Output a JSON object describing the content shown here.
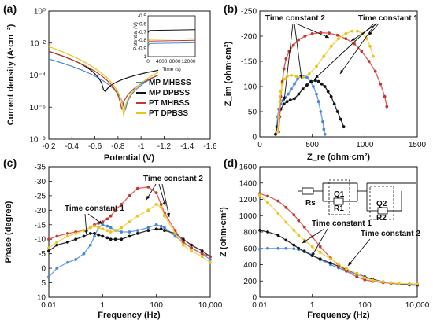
{
  "colors": {
    "mp_mhbss": "#4a86d8",
    "mp_dpbss": "#111111",
    "pt_mhbss": "#c0392b",
    "pt_dpbss": "#e6c619",
    "fit_mp_mhbss": "#6aa0e8",
    "fit_mp_dpbss": "#333333",
    "fit_pt_mhbss": "#e0605a",
    "fit_pt_dpbss": "#f0d65a",
    "axis": "#111111"
  },
  "chart_data": [
    {
      "panel": "(a)",
      "type": "line",
      "xlabel": "Potential (V)",
      "ylabel": "Current density (A·cm⁻²)",
      "xlim": [
        -0.2,
        -1.6
      ],
      "ylim_log": [
        1e-08,
        1
      ],
      "xticks": [
        "-0.2",
        "-0.4",
        "-0.6",
        "-0.8",
        "-1",
        "-1.2",
        "-1.4",
        "-1.6"
      ],
      "yticks": [
        "10⁰",
        "10⁻²",
        "10⁻⁴",
        "10⁻⁶",
        "10⁻⁸"
      ],
      "legend": [
        "MP MHBSS",
        "MP DPBSS",
        "PT MHBSS",
        "PT DPBSS"
      ],
      "series": [
        {
          "name": "MP MHBSS",
          "color": "mp_mhbss",
          "ecorr": -0.86,
          "jmin": 1.5e-07,
          "j_anodic_end": 0.001,
          "j_cathodic_end": 0.0001
        },
        {
          "name": "MP DPBSS",
          "color": "mp_dpbss",
          "ecorr": -0.68,
          "jmin": 3e-06,
          "j_anodic_end": 0.003,
          "j_cathodic_end": 0.0002
        },
        {
          "name": "PT MHBSS",
          "color": "pt_mhbss",
          "ecorr": -0.83,
          "jmin": 2e-07,
          "j_anodic_end": 0.003,
          "j_cathodic_end": 0.0001
        },
        {
          "name": "PT DPBSS",
          "color": "pt_dpbss",
          "ecorr": -0.85,
          "jmin": 1e-07,
          "j_anodic_end": 0.006,
          "j_cathodic_end": 0.00015
        }
      ],
      "inset": {
        "xlabel": "Time (s)",
        "ylabel": "Potential (V)",
        "xticks": [
          "0",
          "4000",
          "8000",
          "12000"
        ],
        "yticks": [
          "-0.5",
          "-0.6",
          "-0.7",
          "-0.8",
          "-0.9",
          "-1"
        ],
        "xlim": [
          0,
          14000
        ],
        "ylim": [
          -1,
          -0.5
        ],
        "series": [
          {
            "name": "MP MHBSS",
            "color": "mp_mhbss",
            "level": -0.84
          },
          {
            "name": "MP DPBSS",
            "color": "mp_dpbss",
            "level": -0.68
          },
          {
            "name": "PT MHBSS",
            "color": "pt_mhbss",
            "level": -0.81
          },
          {
            "name": "PT DPBSS",
            "color": "pt_dpbss",
            "level": -0.79
          }
        ]
      }
    },
    {
      "panel": "(b)",
      "type": "scatter",
      "xlabel": "Z_re (ohm·cm²)",
      "ylabel": "Z_im (ohm·cm²)",
      "xlim": [
        0,
        1500
      ],
      "ylim": [
        0,
        -250
      ],
      "xticks": [
        "0",
        "500",
        "1000",
        "1500"
      ],
      "yticks": [
        "0",
        "-50",
        "-100",
        "-150",
        "-200",
        "-250"
      ],
      "annotations": [
        "Time constant 2",
        "Time constant 1"
      ],
      "series": [
        {
          "name": "MP MHBSS",
          "color": "mp_mhbss",
          "x": [
            150,
            160,
            170,
            180,
            200,
            220,
            240,
            270,
            300,
            330,
            360,
            390,
            420,
            450,
            480,
            510,
            540,
            560,
            580,
            600,
            610,
            620
          ],
          "y": [
            -5,
            -20,
            -40,
            -55,
            -65,
            -72,
            -78,
            -85,
            -95,
            -105,
            -115,
            -120,
            -120,
            -118,
            -110,
            -100,
            -85,
            -70,
            -50,
            -30,
            -15,
            -5
          ]
        },
        {
          "name": "MP DPBSS",
          "color": "mp_dpbss",
          "x": [
            150,
            165,
            180,
            200,
            230,
            260,
            290,
            330,
            370,
            410,
            450,
            490,
            530,
            560,
            590,
            620,
            650,
            680,
            710,
            740,
            770,
            800
          ],
          "y": [
            -5,
            -20,
            -40,
            -55,
            -65,
            -70,
            -73,
            -76,
            -85,
            -95,
            -103,
            -110,
            -112,
            -110,
            -105,
            -100,
            -90,
            -80,
            -65,
            -50,
            -35,
            -20
          ]
        },
        {
          "name": "PT MHBSS",
          "color": "pt_mhbss",
          "x": [
            180,
            190,
            200,
            215,
            230,
            250,
            280,
            320,
            370,
            430,
            500,
            580,
            660,
            740,
            820,
            900,
            970,
            1040,
            1100,
            1150,
            1190,
            1210
          ],
          "y": [
            -10,
            -40,
            -80,
            -110,
            -135,
            -155,
            -170,
            -182,
            -193,
            -200,
            -205,
            -207,
            -206,
            -202,
            -195,
            -185,
            -170,
            -150,
            -130,
            -105,
            -80,
            -60
          ]
        },
        {
          "name": "PT DPBSS",
          "color": "pt_dpbss",
          "x": [
            170,
            180,
            190,
            200,
            215,
            235,
            260,
            300,
            350,
            410,
            470,
            540,
            610,
            680,
            750,
            820,
            880,
            930,
            980,
            1020,
            1050,
            1080
          ],
          "y": [
            -10,
            -40,
            -70,
            -90,
            -105,
            -115,
            -120,
            -122,
            -120,
            -118,
            -125,
            -140,
            -160,
            -180,
            -195,
            -205,
            -210,
            -210,
            -205,
            -195,
            -180,
            -160
          ]
        }
      ]
    },
    {
      "panel": "(c)",
      "type": "scatter",
      "xlabel": "Frequency (Hz)",
      "ylabel": "Phase (degree)",
      "xscale": "log",
      "xlim": [
        0.01,
        10000
      ],
      "ylim": [
        10,
        -35
      ],
      "xticks": [
        "0.01",
        "1",
        "100",
        "10,000"
      ],
      "yticks": [
        "-35",
        "-30",
        "-25",
        "-20",
        "-15",
        "-10",
        "-5",
        "0",
        "5",
        "10"
      ],
      "annotations": [
        "Time constant 1",
        "Time constant 2"
      ],
      "series": [
        {
          "name": "MP MHBSS",
          "color": "mp_mhbss",
          "x": [
            0.01,
            0.02,
            0.05,
            0.1,
            0.2,
            0.35,
            0.5,
            0.7,
            1,
            1.5,
            2,
            3,
            5,
            10,
            20,
            50,
            100,
            150,
            200,
            500,
            1000,
            2000,
            5000,
            10000
          ],
          "y": [
            3,
            0,
            -2,
            -3,
            -5,
            -8,
            -11,
            -14,
            -15,
            -14.5,
            -14,
            -13,
            -12.5,
            -12.5,
            -13,
            -14,
            -15,
            -14.5,
            -14,
            -11,
            -9,
            -7,
            -5,
            -3
          ]
        },
        {
          "name": "MP DPBSS",
          "color": "mp_dpbss",
          "x": [
            0.01,
            0.02,
            0.05,
            0.1,
            0.2,
            0.35,
            0.5,
            0.7,
            1,
            1.5,
            2,
            3,
            5,
            10,
            20,
            50,
            100,
            150,
            200,
            500,
            1000,
            2000,
            5000,
            10000
          ],
          "y": [
            -6,
            -8,
            -9,
            -10,
            -11,
            -12,
            -12,
            -11.5,
            -11,
            -10.5,
            -10,
            -10,
            -10,
            -11,
            -12,
            -13,
            -13.5,
            -13.5,
            -13,
            -12,
            -10,
            -8,
            -6,
            -4
          ]
        },
        {
          "name": "PT MHBSS",
          "color": "pt_mhbss",
          "x": [
            0.01,
            0.02,
            0.05,
            0.1,
            0.2,
            0.35,
            0.5,
            0.7,
            1,
            1.5,
            2,
            3,
            5,
            10,
            20,
            50,
            100,
            150,
            200,
            500,
            1000,
            2000,
            5000,
            10000
          ],
          "y": [
            -10,
            -11,
            -12,
            -12.5,
            -13,
            -14,
            -15,
            -15.5,
            -16,
            -17,
            -18,
            -20,
            -22,
            -25,
            -27.5,
            -28,
            -26,
            -22,
            -19,
            -13,
            -9,
            -7,
            -5,
            -4
          ]
        },
        {
          "name": "PT DPBSS",
          "color": "pt_dpbss",
          "x": [
            0.01,
            0.02,
            0.05,
            0.1,
            0.2,
            0.35,
            0.5,
            0.7,
            1,
            1.5,
            2,
            3,
            5,
            10,
            20,
            50,
            100,
            150,
            200,
            500,
            1000,
            2000,
            5000,
            10000
          ],
          "y": [
            -7,
            -9,
            -11,
            -12,
            -13,
            -14,
            -14.5,
            -14,
            -13.5,
            -13,
            -12.5,
            -13,
            -14,
            -16,
            -18,
            -20,
            -22,
            -21,
            -18,
            -12,
            -8,
            -6,
            -4,
            -2
          ]
        }
      ]
    },
    {
      "panel": "(d)",
      "type": "scatter",
      "xlabel": "Frequency (Hz)",
      "ylabel": "Z (ohm·cm²)",
      "xscale": "log",
      "xlim": [
        0.01,
        10000
      ],
      "ylim": [
        0,
        1600
      ],
      "xticks": [
        "0.01",
        "1",
        "100",
        "10,000"
      ],
      "yticks": [
        "0",
        "200",
        "400",
        "600",
        "800",
        "1000",
        "1200",
        "1400",
        "1600"
      ],
      "annotations": [
        "Time constant 1",
        "Time constant 2"
      ],
      "circuit_labels": [
        "Rs",
        "Q1",
        "R1",
        "Q2",
        "R2"
      ],
      "series": [
        {
          "name": "MP MHBSS",
          "color": "mp_mhbss",
          "x": [
            0.01,
            0.02,
            0.05,
            0.1,
            0.2,
            0.3,
            0.5,
            1,
            2,
            5,
            10,
            20,
            50,
            100,
            200,
            500,
            1000,
            2000,
            5000,
            10000
          ],
          "y": [
            590,
            600,
            600,
            600,
            595,
            585,
            570,
            520,
            460,
            400,
            360,
            320,
            280,
            240,
            210,
            185,
            170,
            160,
            150,
            145
          ]
        },
        {
          "name": "MP DPBSS",
          "color": "mp_dpbss",
          "x": [
            0.01,
            0.02,
            0.05,
            0.1,
            0.2,
            0.3,
            0.5,
            1,
            2,
            5,
            10,
            20,
            50,
            100,
            200,
            500,
            1000,
            2000,
            5000,
            10000
          ],
          "y": [
            820,
            800,
            760,
            700,
            640,
            600,
            560,
            510,
            470,
            420,
            380,
            340,
            290,
            250,
            220,
            190,
            175,
            165,
            155,
            150
          ]
        },
        {
          "name": "PT MHBSS",
          "color": "pt_mhbss",
          "x": [
            0.01,
            0.02,
            0.05,
            0.1,
            0.2,
            0.3,
            0.5,
            1,
            2,
            5,
            10,
            20,
            50,
            100,
            200,
            500,
            1000,
            2000,
            5000,
            10000
          ],
          "y": [
            1270,
            1240,
            1180,
            1100,
            1010,
            940,
            860,
            740,
            620,
            480,
            390,
            320,
            250,
            215,
            195,
            180,
            172,
            168,
            165,
            162
          ]
        },
        {
          "name": "PT DPBSS",
          "color": "pt_dpbss",
          "x": [
            0.01,
            0.02,
            0.05,
            0.1,
            0.2,
            0.3,
            0.5,
            1,
            2,
            5,
            10,
            20,
            50,
            100,
            200,
            500,
            1000,
            2000,
            5000,
            10000
          ],
          "y": [
            1250,
            1160,
            1030,
            920,
            820,
            760,
            700,
            620,
            550,
            470,
            410,
            350,
            290,
            240,
            210,
            190,
            178,
            170,
            165,
            160
          ]
        }
      ]
    }
  ]
}
